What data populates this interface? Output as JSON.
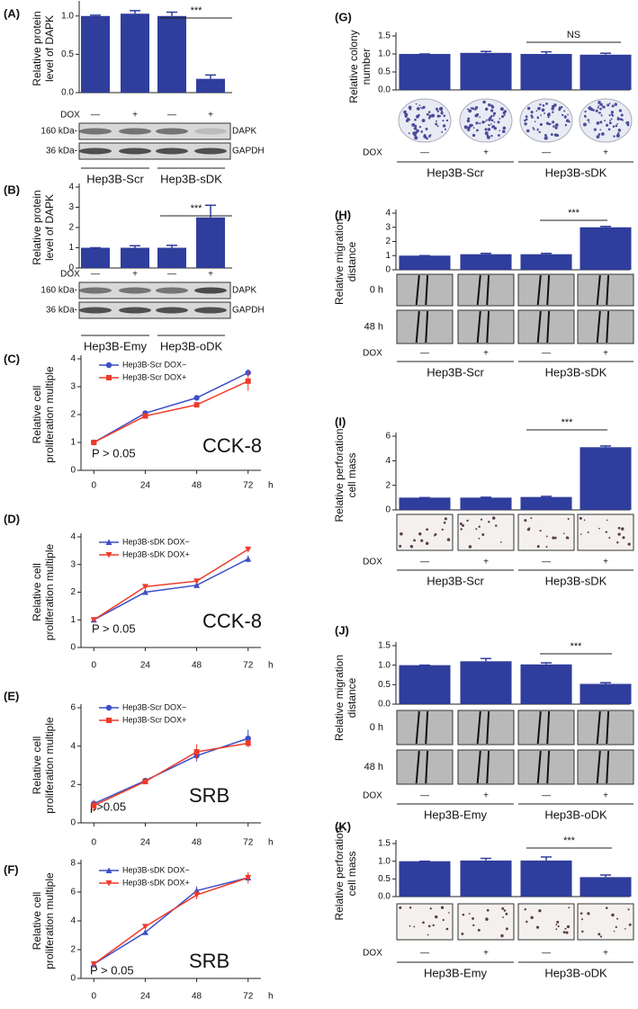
{
  "chart_data": [
    {
      "type": "bar",
      "label": "(A)",
      "y_label": [
        "Relative protein",
        "level of DAPK"
      ],
      "color": "#2f3d9c",
      "ylim": [
        0,
        1.15
      ],
      "yticks": [
        {
          "value": 0,
          "label": "0.0"
        },
        {
          "value": 0.5,
          "label": "0.5"
        },
        {
          "value": 1,
          "label": "1.0"
        }
      ],
      "values": [
        1,
        1.03,
        1.0,
        0.18
      ],
      "errors": [
        0.01,
        0.04,
        0.05,
        0.05
      ],
      "row_label": "DOX",
      "categories": [
        "—",
        "+",
        "—",
        "+"
      ],
      "groups": [
        "Hep3B-Scr",
        "Hep3B-sDK"
      ],
      "significance": "***",
      "blot": {
        "sizes": [
          "160 kDa-",
          "36 kDa-"
        ],
        "bands": [
          "DAPK",
          "GAPDH"
        ]
      }
    },
    {
      "type": "bar",
      "label": "(B)",
      "y_label": [
        "Relative protein",
        "level of DAPK"
      ],
      "color": "#2f3d9c",
      "ylim": [
        0,
        4
      ],
      "yticks": [
        0,
        1,
        2,
        3,
        4
      ],
      "values": [
        1,
        1,
        1,
        2.5
      ],
      "errors": [
        0,
        0.1,
        0.12,
        0.6
      ],
      "row_label": "DOX",
      "categories": [
        "—",
        "+",
        "—",
        "+"
      ],
      "groups": [
        "Hep3B-Emy",
        "Hep3B-oDK"
      ],
      "significance": "***",
      "blot": {
        "sizes": [
          "160 kDa-",
          "36 kDa-"
        ],
        "bands": [
          "DAPK",
          "GAPDH"
        ]
      }
    },
    {
      "type": "line",
      "label": "(C)",
      "y_label": [
        "Relative cell",
        "proliferation multiple"
      ],
      "x_label": "h",
      "x": [
        0,
        24,
        48,
        72
      ],
      "xlim": [
        -6,
        78
      ],
      "xticks": [
        0,
        24,
        48,
        72
      ],
      "ylim": [
        0,
        4
      ],
      "yticks": [
        0,
        1,
        2,
        3,
        4
      ],
      "note": "P > 0.05",
      "assay": "CCK-8",
      "series": [
        {
          "name": "Hep3B-Scr DOX−",
          "color": "#3b4fc8",
          "marker": "circle",
          "values": [
            1,
            2.05,
            2.6,
            3.5
          ],
          "errors": [
            0,
            0.05,
            0.1,
            0.12
          ]
        },
        {
          "name": "Hep3B-Scr DOX+",
          "color": "#ee3b2b",
          "marker": "square",
          "values": [
            1,
            1.95,
            2.35,
            3.2
          ],
          "errors": [
            0,
            0.04,
            0.05,
            0.35
          ]
        }
      ]
    },
    {
      "type": "line",
      "label": "(D)",
      "y_label": [
        "Relative cell",
        "proliferation multiple"
      ],
      "x_label": "h",
      "x": [
        0,
        24,
        48,
        72
      ],
      "xlim": [
        -6,
        78
      ],
      "xticks": [
        0,
        24,
        48,
        72
      ],
      "ylim": [
        0,
        4
      ],
      "yticks": [
        0,
        1,
        2,
        3,
        4
      ],
      "note": "P > 0.05",
      "assay": "CCK-8",
      "series": [
        {
          "name": "Hep3B-sDK DOX−",
          "color": "#3b4fc8",
          "marker": "triangle",
          "values": [
            1,
            2.0,
            2.25,
            3.2
          ],
          "errors": [
            0,
            0.04,
            0.05,
            0.12
          ]
        },
        {
          "name": "Hep3B-sDK DOX+",
          "color": "#ee3b2b",
          "marker": "down",
          "values": [
            1,
            2.2,
            2.4,
            3.55
          ],
          "errors": [
            0,
            0.04,
            0.05,
            0.05
          ]
        }
      ]
    },
    {
      "type": "line",
      "label": "(E)",
      "y_label": [
        "Relative cell",
        "proliferation multiple"
      ],
      "x_label": "h",
      "x": [
        0,
        24,
        48,
        72
      ],
      "xlim": [
        -6,
        78
      ],
      "xticks": [
        0,
        24,
        48,
        72
      ],
      "ylim": [
        0,
        6
      ],
      "yticks": [
        0,
        2,
        4,
        6
      ],
      "note": "p>0.05",
      "assay": "SRB",
      "series": [
        {
          "name": "Hep3B-Scr DOX−",
          "color": "#3b4fc8",
          "marker": "circle",
          "values": [
            1,
            2.2,
            3.5,
            4.4
          ],
          "errors": [
            0.1,
            0.1,
            0.3,
            0.45
          ]
        },
        {
          "name": "Hep3B-Scr DOX+",
          "color": "#ee3b2b",
          "marker": "square",
          "values": [
            0.9,
            2.15,
            3.7,
            4.15
          ],
          "errors": [
            0.3,
            0.1,
            0.4,
            0.2
          ]
        }
      ]
    },
    {
      "type": "line",
      "label": "(F)",
      "y_label": [
        "Relative cell",
        "proliferation multiple"
      ],
      "x_label": "h",
      "x": [
        0,
        24,
        48,
        72
      ],
      "xlim": [
        -6,
        78
      ],
      "xticks": [
        0,
        24,
        48,
        72
      ],
      "ylim": [
        0,
        8
      ],
      "yticks": [
        0,
        2,
        4,
        6,
        8
      ],
      "note": "P > 0.05",
      "assay": "SRB",
      "series": [
        {
          "name": "Hep3B-sDK DOX−",
          "color": "#3b4fc8",
          "marker": "triangle",
          "values": [
            1,
            3.2,
            6.1,
            7.0
          ],
          "errors": [
            0.1,
            0.1,
            0.3,
            0.3
          ]
        },
        {
          "name": "Hep3B-sDK DOX+",
          "color": "#ee3b2b",
          "marker": "down",
          "values": [
            1,
            3.6,
            5.8,
            7.0
          ],
          "errors": [
            0.1,
            0.1,
            0.3,
            0.4
          ]
        }
      ]
    },
    {
      "type": "bar",
      "label": "(G)",
      "y_label": [
        "Relative colony",
        "number"
      ],
      "color": "#2f3d9c",
      "ylim": [
        0,
        1.5
      ],
      "yticks": [
        {
          "value": 0,
          "label": "0.0"
        },
        {
          "value": 0.5,
          "label": "0.5"
        },
        {
          "value": 1,
          "label": "1.0"
        },
        {
          "value": 1.5,
          "label": "1.5"
        }
      ],
      "values": [
        1,
        1.03,
        1.0,
        0.98
      ],
      "errors": [
        0,
        0.04,
        0.06,
        0.04
      ],
      "row_label": "DOX",
      "categories": [
        "—",
        "+",
        "—",
        "+"
      ],
      "groups": [
        "Hep3B-Scr",
        "Hep3B-sDK"
      ],
      "significance": "NS"
    },
    {
      "type": "bar",
      "label": "(H)",
      "y_label": [
        "Relative migration",
        "distance"
      ],
      "color": "#2f3d9c",
      "ylim": [
        0,
        4
      ],
      "yticks": [
        0,
        1,
        2,
        3,
        4
      ],
      "values": [
        1,
        1.1,
        1.1,
        3.0
      ],
      "errors": [
        0,
        0.06,
        0.06,
        0.06
      ],
      "row_label": "DOX",
      "categories": [
        "—",
        "+",
        "—",
        "+"
      ],
      "groups": [
        "Hep3B-Scr",
        "Hep3B-sDK"
      ],
      "significance": "***",
      "image_rows": [
        "0 h",
        "48 h"
      ]
    },
    {
      "type": "bar",
      "label": "(I)",
      "y_label": [
        "Relative perforation",
        "cell mass"
      ],
      "color": "#2f3d9c",
      "ylim": [
        0,
        6
      ],
      "yticks": [
        0,
        2,
        4,
        6
      ],
      "values": [
        1,
        1,
        1.05,
        5.1
      ],
      "errors": [
        0,
        0.03,
        0.05,
        0.1
      ],
      "row_label": "DOX",
      "categories": [
        "—",
        "+",
        "—",
        "+"
      ],
      "groups": [
        "Hep3B-Scr",
        "Hep3B-sDK"
      ],
      "significance": "***"
    },
    {
      "type": "bar",
      "label": "(J)",
      "y_label": [
        "Relative migration",
        "distance"
      ],
      "color": "#2f3d9c",
      "ylim": [
        0,
        1.5
      ],
      "yticks": [
        {
          "value": 0,
          "label": "0.0"
        },
        {
          "value": 0.5,
          "label": "0.5"
        },
        {
          "value": 1,
          "label": "1.0"
        },
        {
          "value": 1.5,
          "label": "1.5"
        }
      ],
      "values": [
        1,
        1.1,
        1.02,
        0.52
      ],
      "errors": [
        0,
        0.07,
        0.04,
        0.03
      ],
      "row_label": "DOX",
      "categories": [
        "—",
        "+",
        "—",
        "+"
      ],
      "groups": [
        "Hep3B-Emy",
        "Hep3B-oDK"
      ],
      "significance": "***",
      "image_rows": [
        "0 h",
        "48 h"
      ]
    },
    {
      "type": "bar",
      "label": "(K)",
      "y_label": [
        "Relative perforation",
        "cell mass"
      ],
      "color": "#2f3d9c",
      "ylim": [
        0,
        1.5
      ],
      "yticks": [
        {
          "value": 0,
          "label": "0.0"
        },
        {
          "value": 0.5,
          "label": "0.5"
        },
        {
          "value": 1,
          "label": "1.0"
        },
        {
          "value": 1.5,
          "label": "1.5"
        }
      ],
      "values": [
        1,
        1.02,
        1.02,
        0.55
      ],
      "errors": [
        0,
        0.06,
        0.1,
        0.06
      ],
      "row_label": "DOX",
      "categories": [
        "—",
        "+",
        "—",
        "+"
      ],
      "groups": [
        "Hep3B-Emy",
        "Hep3B-oDK"
      ],
      "significance": "***"
    }
  ]
}
